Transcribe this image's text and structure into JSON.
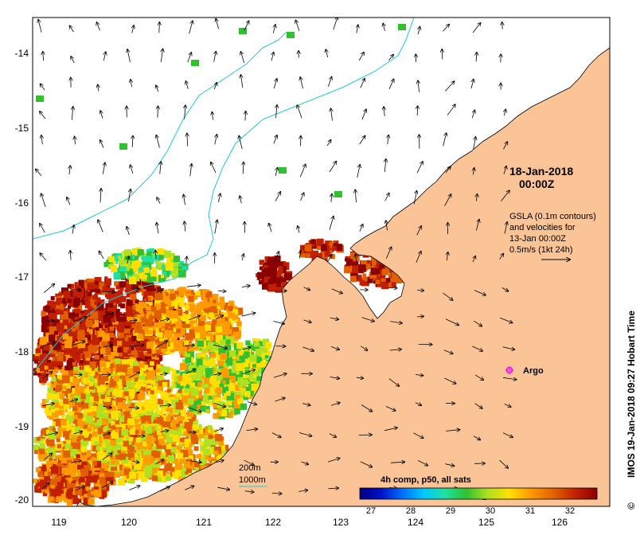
{
  "map": {
    "date_label_line1": "18-Jan-2018",
    "date_label_line2": "00:00Z",
    "info_lines": [
      "GSLA (0.1m contours)",
      "and velocities for",
      "13-Jan 00:00Z",
      "0.5m/s (1kt 24h)"
    ],
    "legend_200m": "200m",
    "legend_1000m": "1000m",
    "argo_label": "Argo",
    "colorbar_title": "4h comp, p50, all sats",
    "colorbar_ticks": [
      "27",
      "28",
      "29",
      "30",
      "31",
      "32"
    ],
    "credit": "IMOS 19-Jan-2018 09:27 Hobart Time",
    "copyright_symbol": "©",
    "lon_ticks": [
      "119",
      "120",
      "121",
      "122",
      "123",
      "124",
      "125",
      "126"
    ],
    "lat_ticks": [
      "-14",
      "-15",
      "-16",
      "-17",
      "-18",
      "-19",
      "-20"
    ],
    "colors": {
      "land": "#fbc497",
      "isobath": "#22c8d8",
      "frame": "#000000",
      "argo": "#ff00ff",
      "colormap": [
        "#00007f",
        "#0010c8",
        "#0070ff",
        "#00c8ff",
        "#20e0a0",
        "#30c030",
        "#b0e020",
        "#ffe000",
        "#ff9a00",
        "#e06000",
        "#c02000",
        "#8a0000"
      ]
    },
    "colorbar_range": [
      26.5,
      32.5
    ]
  }
}
